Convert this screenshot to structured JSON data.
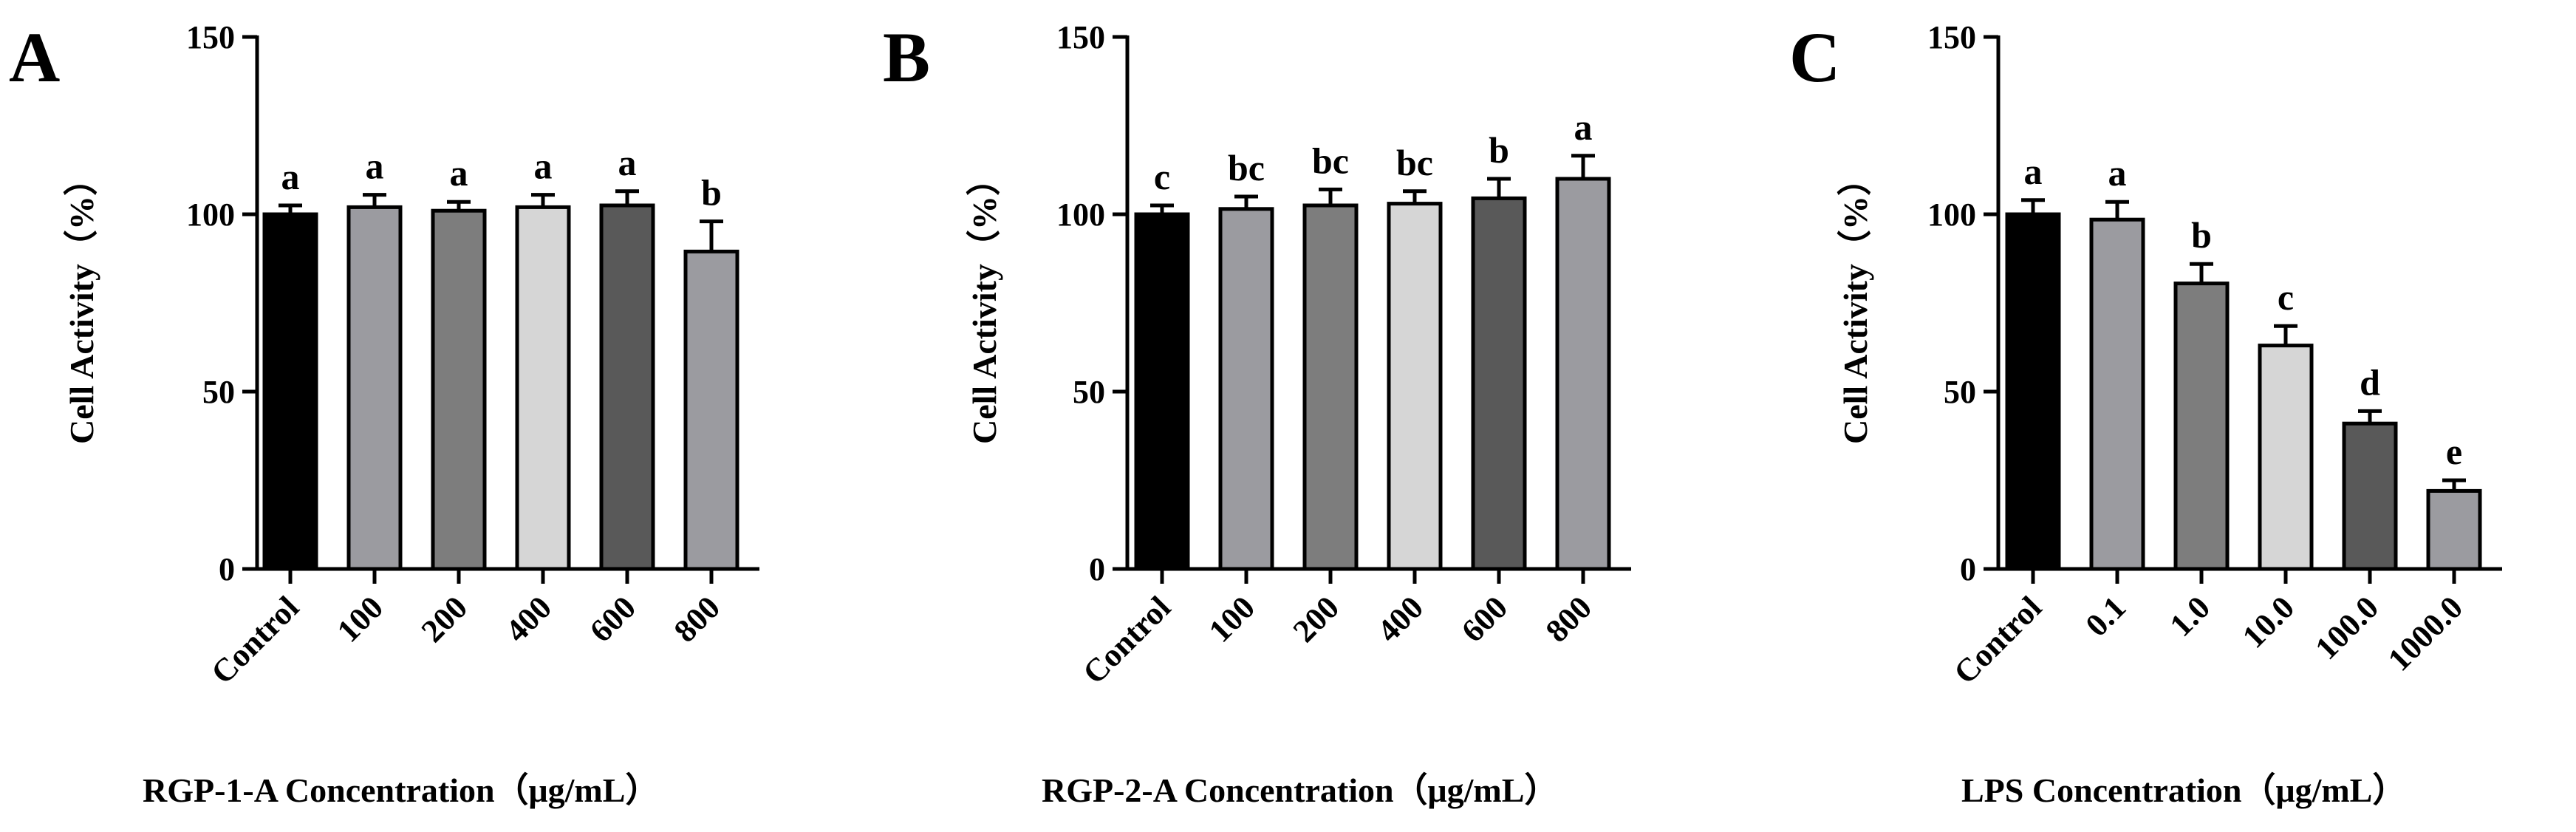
{
  "chart_data": [
    {
      "type": "bar",
      "panel_label": "A",
      "title": "",
      "xlabel": "RGP-1-A Concentration（μg/mL）",
      "ylabel": "Cell Activity（%）",
      "ylim": [
        0,
        150
      ],
      "yticks": [
        0,
        50,
        100,
        150
      ],
      "ytick_labels": [
        "0",
        "50",
        "100",
        "150"
      ],
      "categories": [
        "Control",
        "100",
        "200",
        "400",
        "600",
        "800"
      ],
      "values": [
        100,
        102,
        101,
        102,
        102.5,
        89.5
      ],
      "errors": [
        2.5,
        3.5,
        2.5,
        3.5,
        4,
        8.5
      ],
      "letters": [
        "a",
        "a",
        "a",
        "a",
        "a",
        "b"
      ],
      "colors": [
        "#000000",
        "#9b9ba0",
        "#7d7d7d",
        "#d6d6d6",
        "#595959",
        "#9b9ba0"
      ],
      "grid": false
    },
    {
      "type": "bar",
      "panel_label": "B",
      "title": "",
      "xlabel": "RGP-2-A Concentration（μg/mL）",
      "ylabel": "Cell Activity（%）",
      "ylim": [
        0,
        150
      ],
      "yticks": [
        0,
        50,
        100,
        150
      ],
      "ytick_labels": [
        "0",
        "50",
        "100",
        "150"
      ],
      "categories": [
        "Control",
        "100",
        "200",
        "400",
        "600",
        "800"
      ],
      "values": [
        100,
        101.5,
        102.5,
        103,
        104.5,
        110
      ],
      "errors": [
        2.5,
        3.5,
        4.5,
        3.5,
        5.5,
        6.5
      ],
      "letters": [
        "c",
        "bc",
        "bc",
        "bc",
        "b",
        "a"
      ],
      "colors": [
        "#000000",
        "#9b9ba0",
        "#7d7d7d",
        "#d6d6d6",
        "#595959",
        "#9b9ba0"
      ],
      "grid": false
    },
    {
      "type": "bar",
      "panel_label": "C",
      "title": "",
      "xlabel": "LPS Concentration（μg/mL）",
      "ylabel": "Cell Activity（%）",
      "ylim": [
        0,
        150
      ],
      "yticks": [
        0,
        50,
        100,
        150
      ],
      "ytick_labels": [
        "0",
        "50",
        "100",
        "150"
      ],
      "categories": [
        "Control",
        "0.1",
        "1.0",
        "10.0",
        "100.0",
        "1000.0"
      ],
      "values": [
        100,
        98.5,
        80.5,
        63,
        41,
        22
      ],
      "errors": [
        4,
        5,
        5.5,
        5.5,
        3.5,
        3
      ],
      "letters": [
        "a",
        "a",
        "b",
        "c",
        "d",
        "e"
      ],
      "colors": [
        "#000000",
        "#9b9ba0",
        "#7d7d7d",
        "#d6d6d6",
        "#595959",
        "#9b9ba0"
      ],
      "grid": false
    }
  ]
}
